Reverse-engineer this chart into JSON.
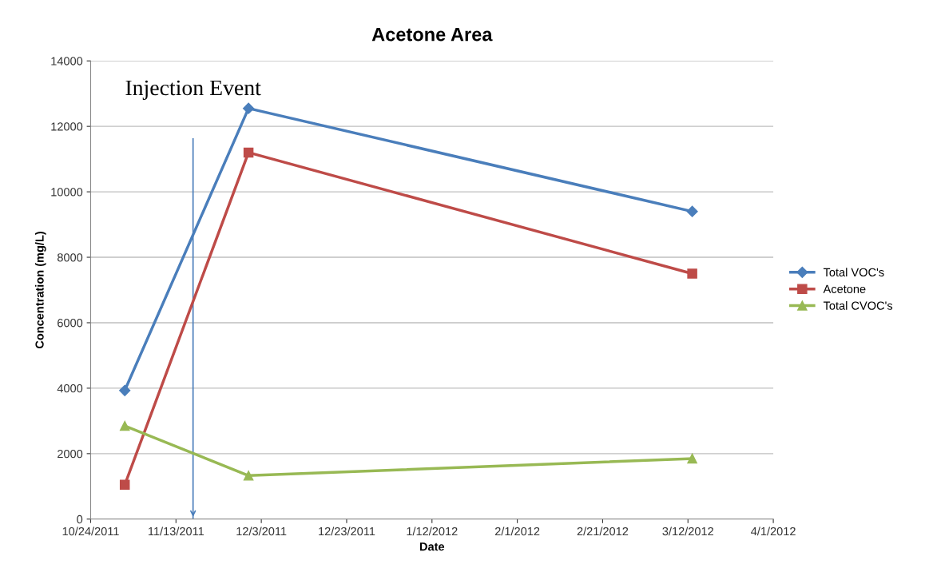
{
  "chart_data": {
    "type": "line",
    "title": "Acetone Area",
    "xlabel": "Date",
    "ylabel": "Concentration (mg/L)",
    "x": [
      "2011-11-01",
      "2011-11-30",
      "2012-03-13"
    ],
    "series": [
      {
        "name": "Total VOC's",
        "color": "#4a7ebb",
        "marker": "diamond",
        "values": [
          3930,
          12550,
          9400
        ]
      },
      {
        "name": "Acetone",
        "color": "#be4b48",
        "marker": "square",
        "values": [
          1050,
          11200,
          7500
        ]
      },
      {
        "name": "Total CVOC's",
        "color": "#98b954",
        "marker": "triangle",
        "values": [
          2850,
          1330,
          1850
        ]
      }
    ],
    "xlim": [
      "2011-10-24",
      "2012-04-01"
    ],
    "xticks": [
      {
        "value": "2011-10-24",
        "label": "10/24/2011"
      },
      {
        "value": "2011-11-13",
        "label": "11/13/2011"
      },
      {
        "value": "2011-12-03",
        "label": "12/3/2011"
      },
      {
        "value": "2011-12-23",
        "label": "12/23/2011"
      },
      {
        "value": "2012-01-12",
        "label": "1/12/2012"
      },
      {
        "value": "2012-02-01",
        "label": "2/1/2012"
      },
      {
        "value": "2012-02-21",
        "label": "2/21/2012"
      },
      {
        "value": "2012-03-12",
        "label": "3/12/2012"
      },
      {
        "value": "2012-04-01",
        "label": "4/1/2012"
      }
    ],
    "ylim": [
      0,
      14000
    ],
    "yticks": [
      0,
      2000,
      4000,
      6000,
      8000,
      10000,
      12000,
      14000
    ],
    "ref_lines": [
      {
        "axis": "x",
        "value": "2011-11-17",
        "label": "Injection Event",
        "color": "#4a7ebb"
      }
    ],
    "grid": "y",
    "legend": "right",
    "line_style": "solid"
  }
}
